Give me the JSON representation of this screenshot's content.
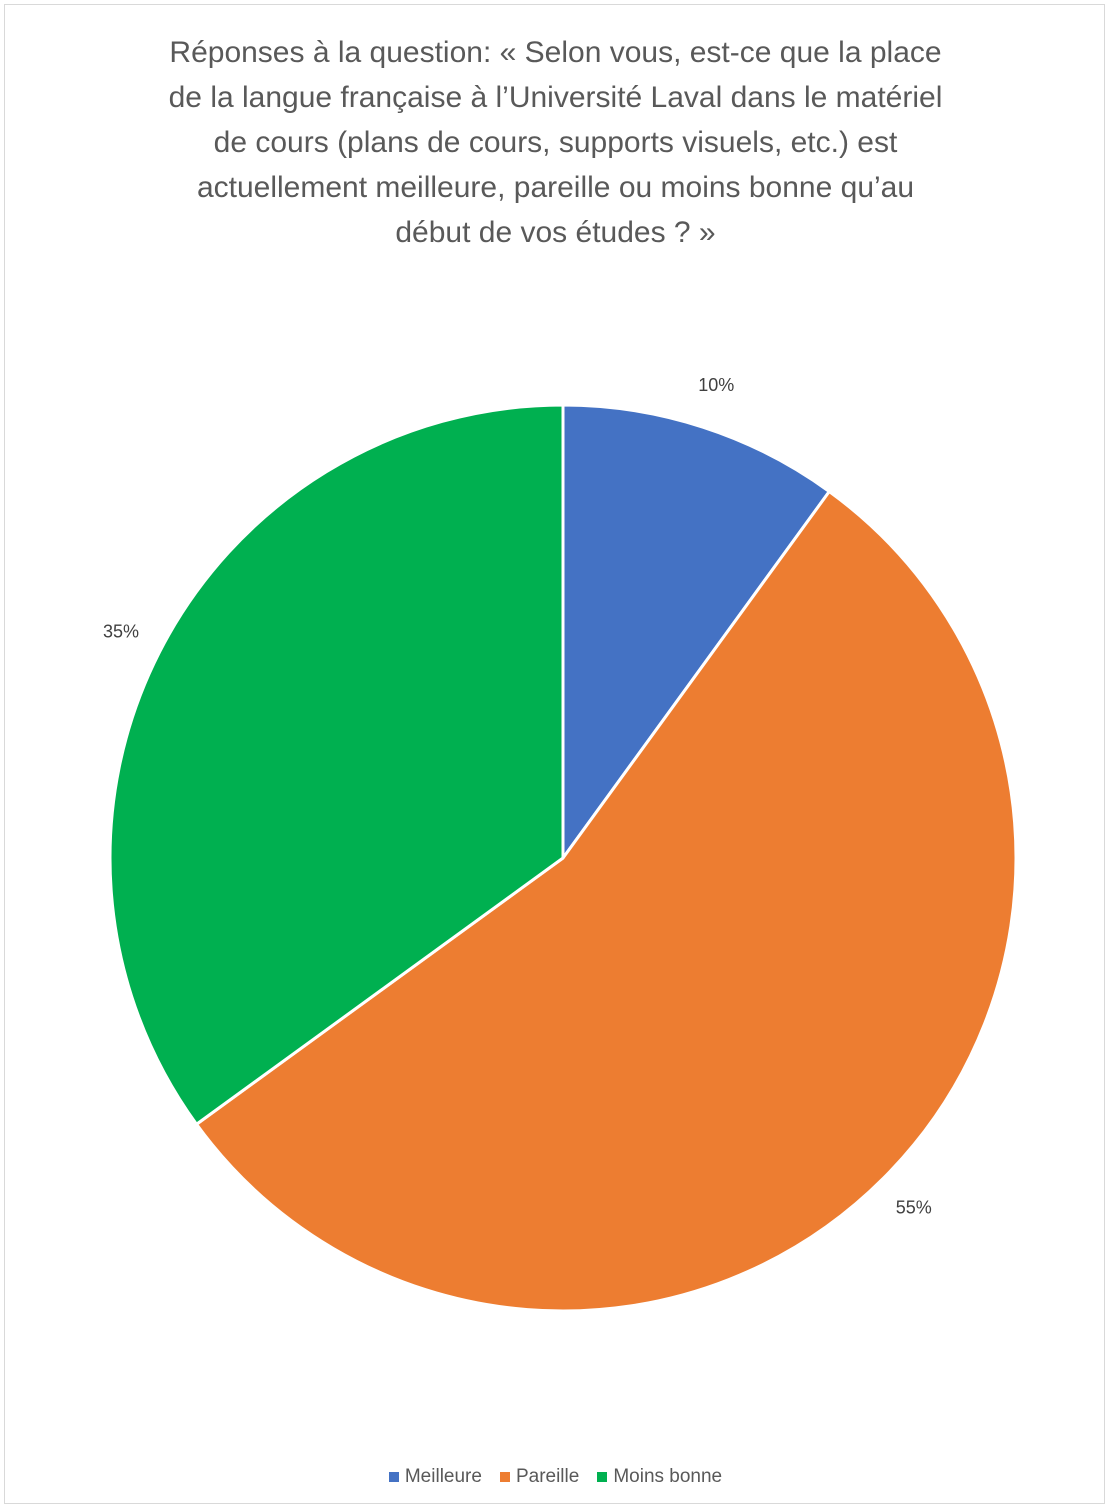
{
  "chart_data": {
    "type": "pie",
    "title": [
      "Réponses à la question: « Selon vous, est-ce que la place",
      "de la langue française à l’Université Laval dans le matériel",
      "de cours (plans de cours, supports visuels, etc.) est",
      "actuellement meilleure, pareille ou moins bonne qu’au",
      "début de vos études ? »"
    ],
    "start_angle_deg": 0,
    "direction": "clockwise",
    "legend_position": "bottom",
    "slices": [
      {
        "label": "Meilleure",
        "value": 10,
        "value_label": "10%",
        "color": "#4472C4"
      },
      {
        "label": "Pareille",
        "value": 55,
        "value_label": "55%",
        "color": "#ED7D31"
      },
      {
        "label": "Moins bonne",
        "value": 35,
        "value_label": "35%",
        "color": "#00B050"
      }
    ]
  }
}
